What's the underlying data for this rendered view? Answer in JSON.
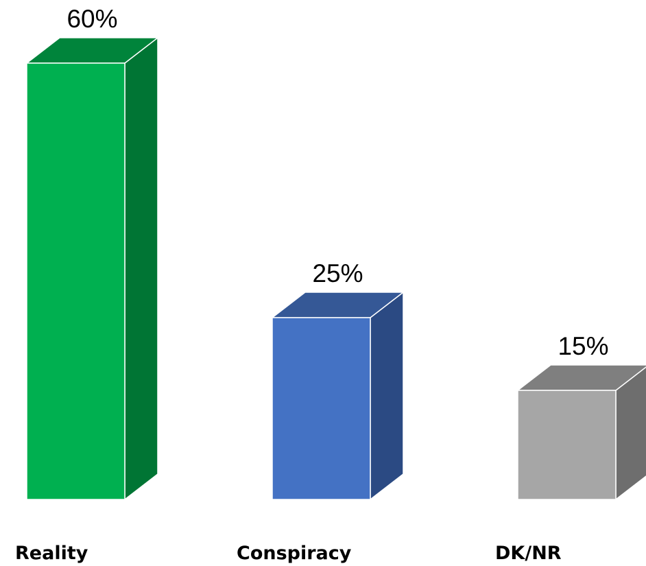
{
  "chart_data": {
    "type": "bar",
    "style": "3d-column",
    "categories": [
      "Reality",
      "Conspiracy",
      "DK/NR"
    ],
    "values": [
      60,
      25,
      15
    ],
    "value_labels": [
      "60%",
      "25%",
      "15%"
    ],
    "ylim": [
      0,
      60
    ],
    "grid": false,
    "legend": "none",
    "colors": [
      {
        "front": "#00B050",
        "side": "#007534",
        "top": "#00843B"
      },
      {
        "front": "#4472C4",
        "side": "#2B4A83",
        "top": "#355896"
      },
      {
        "front": "#A6A6A6",
        "side": "#6E6E6E",
        "top": "#7F7F7F"
      }
    ]
  }
}
